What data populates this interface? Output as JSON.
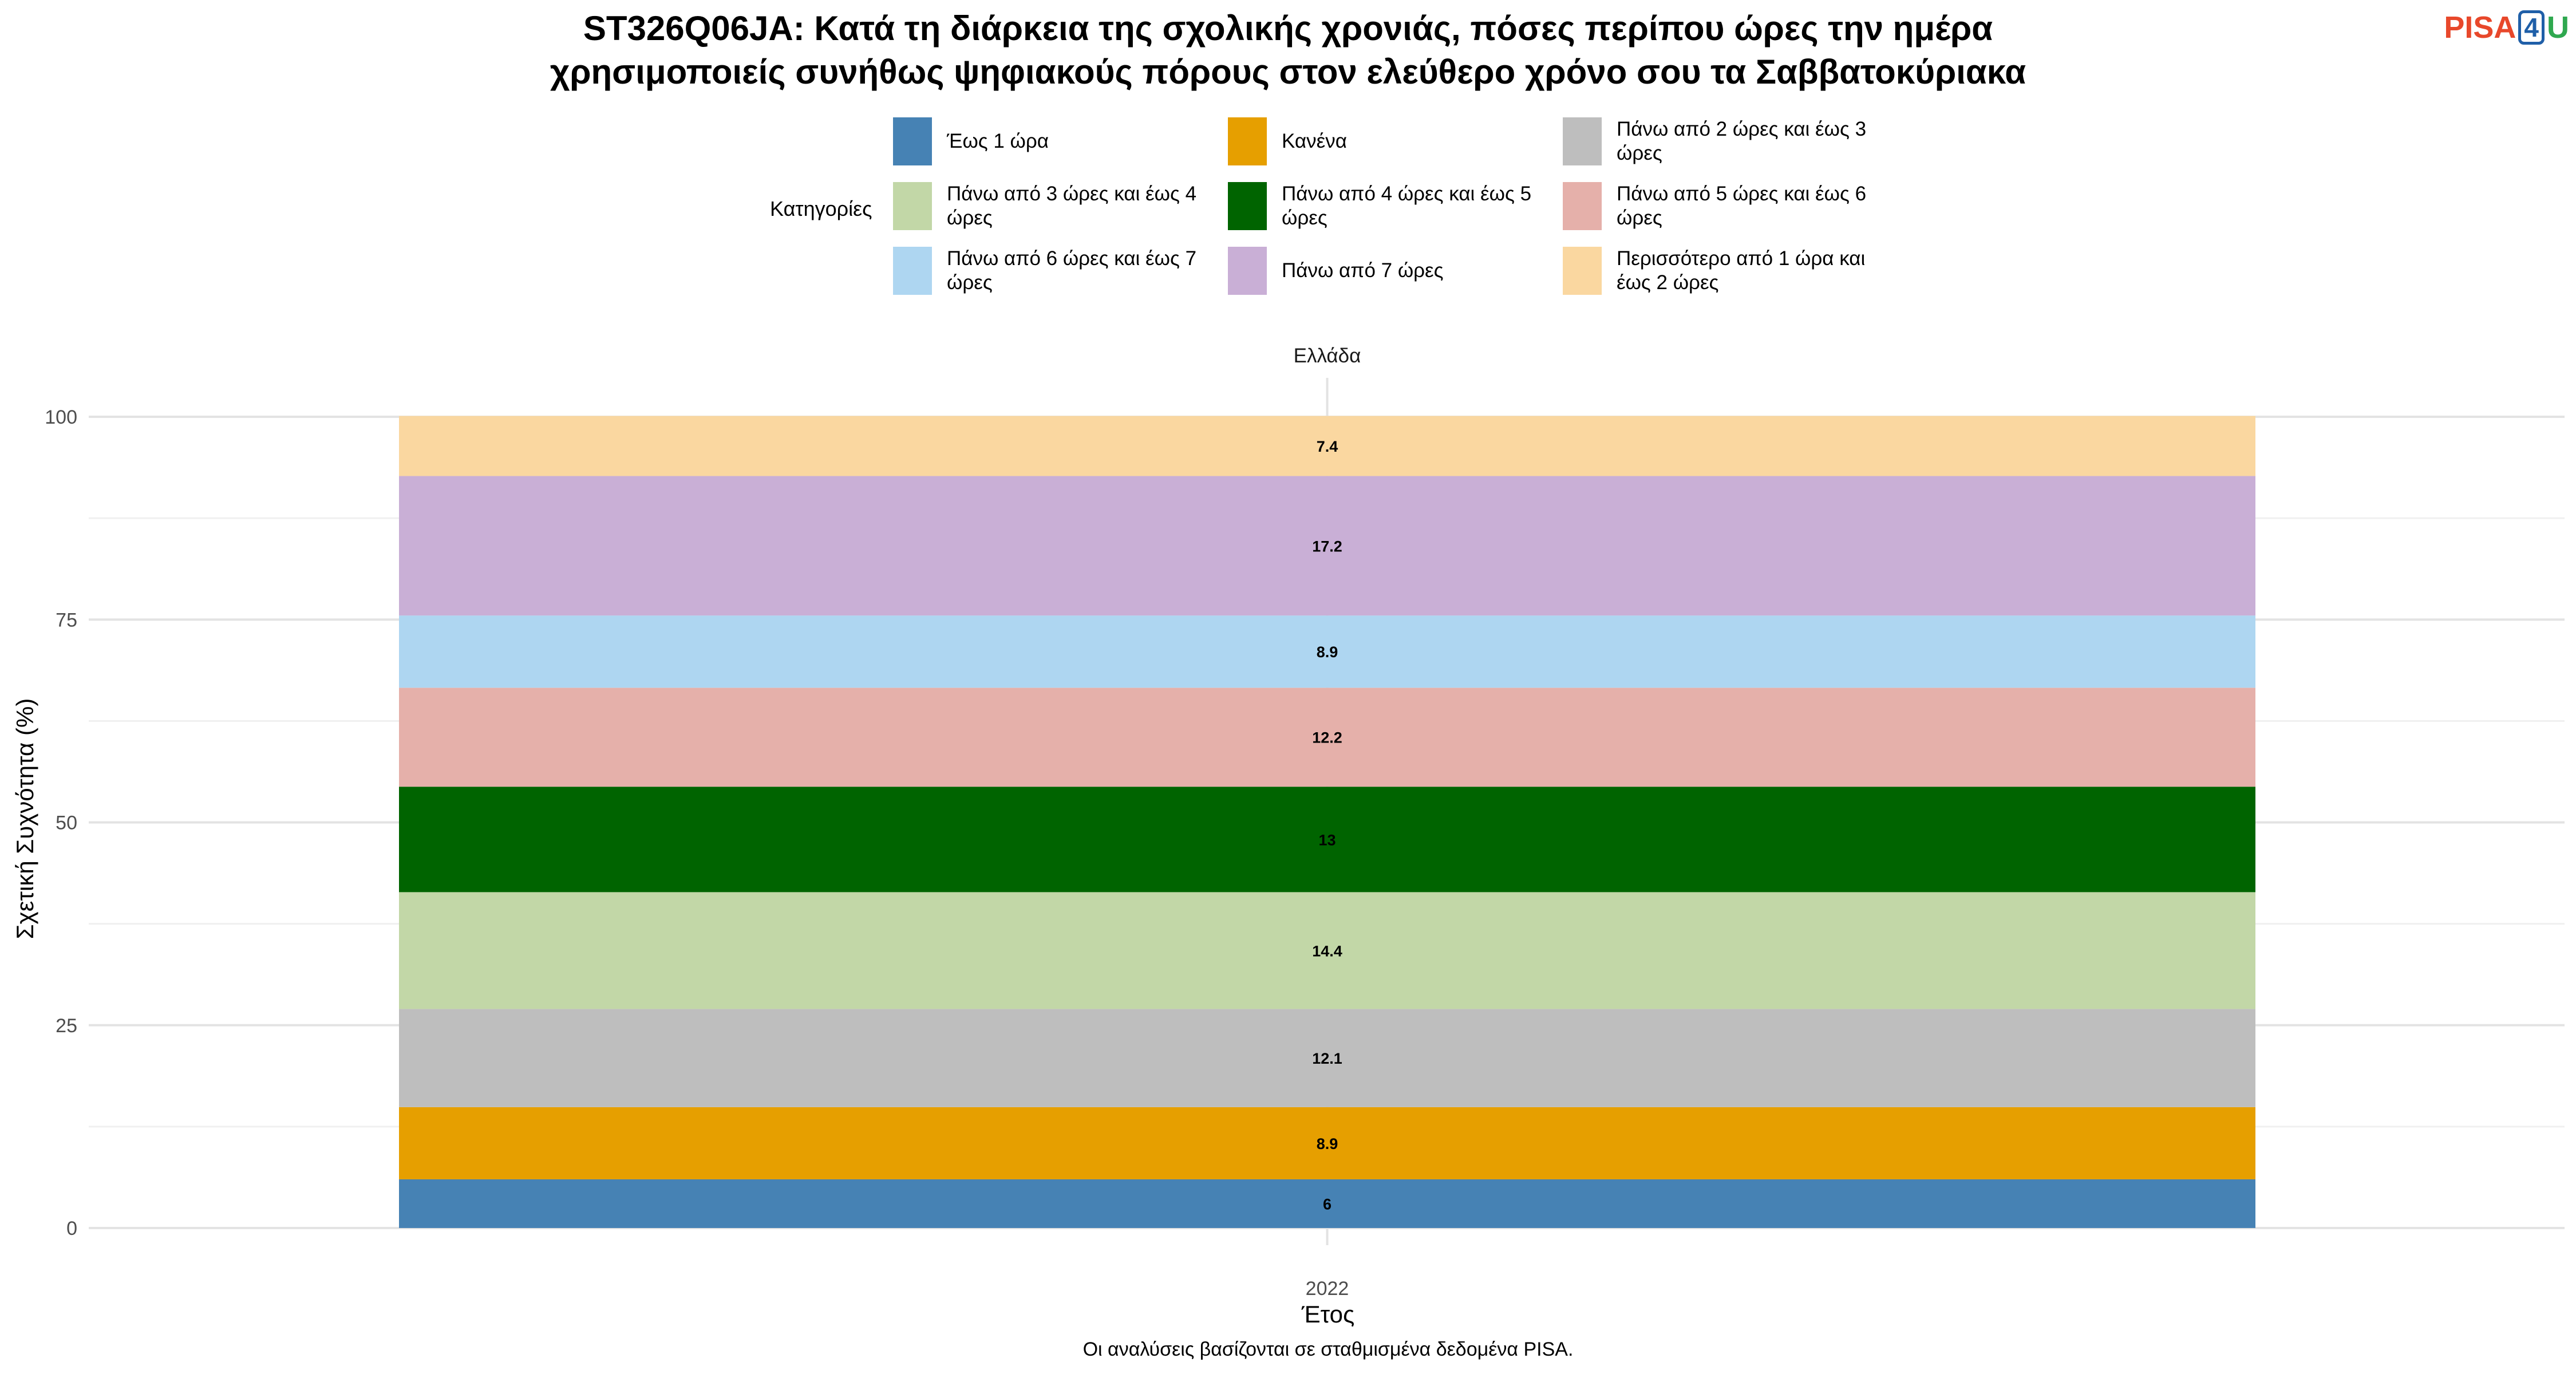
{
  "title_line1": "ST326Q06JA: Κατά τη διάρκεια της σχολικής χρονιάς, πόσες περίπου ώρες την ημέρα",
  "title_line2": "χρησιμοποιείς συνήθως ψηφιακούς πόρους στον ελεύθερο χρόνο σου τα Σαββατοκύριακα",
  "logo": {
    "part1": "PISA",
    "part2": "4",
    "part3": "U"
  },
  "legend": {
    "title": "Κατηγορίες",
    "items": [
      {
        "label": "Έως 1 ώρα",
        "color": "#4682b4"
      },
      {
        "label": "Κανένα",
        "color": "#e69f00"
      },
      {
        "label": "Πάνω από 2 ώρες και έως 3 ώρες",
        "color": "#bebebe"
      },
      {
        "label": "Πάνω από 3 ώρες και έως 4 ώρες",
        "color": "#c2d7a7"
      },
      {
        "label": "Πάνω από 4 ώρες και έως 5 ώρες",
        "color": "#006400"
      },
      {
        "label": "Πάνω από 5 ώρες και έως 6 ώρες",
        "color": "#e5b0aa"
      },
      {
        "label": "Πάνω από 6 ώρες και έως 7 ώρες",
        "color": "#aed6f1"
      },
      {
        "label": "Πάνω από 7 ώρες",
        "color": "#c9afd6"
      },
      {
        "label": "Περισσότερο από 1 ώρα και έως 2 ώρες",
        "color": "#fad7a0"
      }
    ]
  },
  "axis": {
    "xlabel": "Έτος",
    "ylabel": "Σχετική Συχνότητα (%)"
  },
  "caption": "Οι αναλύσεις βασίζονται σε σταθμισμένα δεδομένα PISA.",
  "chart_data": {
    "type": "bar",
    "stacked": true,
    "facet": "Ελλάδα",
    "categories": [
      "2022"
    ],
    "xlabel": "Έτος",
    "ylabel": "Σχετική Συχνότητα (%)",
    "ylim": [
      0,
      100
    ],
    "yticks": [
      0,
      25,
      50,
      75,
      100
    ],
    "grid": true,
    "legend_position": "top",
    "series": [
      {
        "name": "Έως 1 ώρα",
        "values": [
          6
        ],
        "label": "6",
        "color": "#4682b4"
      },
      {
        "name": "Κανένα",
        "values": [
          8.9
        ],
        "label": "8.9",
        "color": "#e69f00"
      },
      {
        "name": "Πάνω από 2 ώρες και έως 3 ώρες",
        "values": [
          12.1
        ],
        "label": "12.1",
        "color": "#bebebe"
      },
      {
        "name": "Πάνω από 3 ώρες και έως 4 ώρες",
        "values": [
          14.4
        ],
        "label": "14.4",
        "color": "#c2d7a7"
      },
      {
        "name": "Πάνω από 4 ώρες και έως 5 ώρες",
        "values": [
          13
        ],
        "label": "13",
        "color": "#006400"
      },
      {
        "name": "Πάνω από 5 ώρες και έως 6 ώρες",
        "values": [
          12.2
        ],
        "label": "12.2",
        "color": "#e5b0aa"
      },
      {
        "name": "Πάνω από 6 ώρες και έως 7 ώρες",
        "values": [
          8.9
        ],
        "label": "8.9",
        "color": "#aed6f1"
      },
      {
        "name": "Πάνω από 7 ώρες",
        "values": [
          17.2
        ],
        "label": "17.2",
        "color": "#c9afd6"
      },
      {
        "name": "Περισσότερο από 1 ώρα και έως 2 ώρες",
        "values": [
          7.4
        ],
        "label": "7.4",
        "color": "#fad7a0"
      }
    ]
  }
}
